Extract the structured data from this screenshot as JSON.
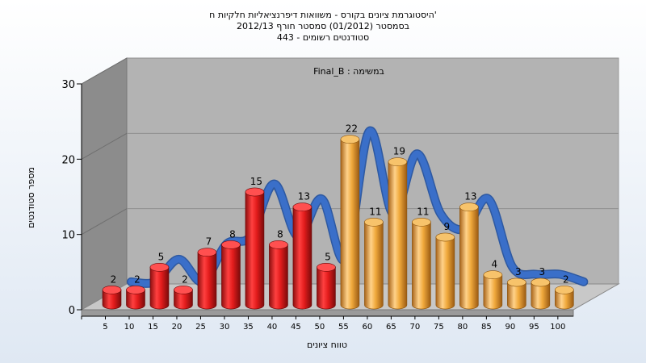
{
  "chart_data": {
    "type": "bar",
    "title_lines": [
      "היסטוגרמת ציונים בקורס - משוואות דיפרנציאליות חלקיות ח'",
      "בסמסטר  (01/2012)  סמסטר חורף 2012/13",
      "סטודנטים רשומים - 443"
    ],
    "subtitle": "Final_B : במשימה",
    "xlabel": "טווח ציונים",
    "ylabel": "מספר סטודנטים",
    "ylim": [
      0,
      30
    ],
    "yticks": [
      0,
      10,
      20,
      30
    ],
    "categories": [
      "5",
      "10",
      "15",
      "20",
      "25",
      "30",
      "35",
      "40",
      "45",
      "50",
      "55",
      "60",
      "65",
      "70",
      "75",
      "80",
      "85",
      "90",
      "95",
      "100"
    ],
    "series": [
      {
        "values": [
          2,
          2,
          5,
          2,
          7,
          8,
          15,
          8,
          13,
          5,
          22,
          11,
          19,
          11,
          9,
          13,
          4,
          3,
          3,
          2
        ]
      }
    ],
    "bar_colors": [
      "#e31c1c",
      "#e31c1c",
      "#e31c1c",
      "#e31c1c",
      "#e31c1c",
      "#e31c1c",
      "#e31c1c",
      "#e31c1c",
      "#e31c1c",
      "#e31c1c",
      "#f0a93c",
      "#f0a93c",
      "#f0a93c",
      "#f0a93c",
      "#f0a93c",
      "#f0a93c",
      "#f0a93c",
      "#f0a93c",
      "#f0a93c",
      "#f0a93c"
    ],
    "trend_color": "#3a6fc9",
    "wall_color": "#b3b3b3",
    "side_wall_color": "#8c8c8c",
    "grid": true
  }
}
